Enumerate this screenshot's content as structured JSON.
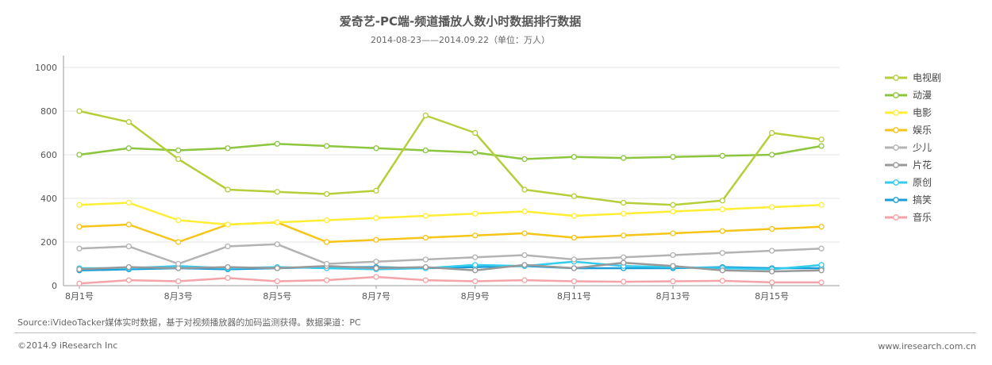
{
  "header": {
    "title": "爱奇艺-PC端-频道播放人数小时数据排行数据",
    "subtitle": "2014-08-23——2014.09.22（单位：万人）"
  },
  "footer": {
    "source": "Source:iVideoTacker媒体实时数据，基于对视频播放器的加码监测获得。数据渠道：PC",
    "copyright": "©2014.9 iResearch Inc",
    "website": "www.iresearch.com.cn"
  },
  "chart_data": {
    "type": "line",
    "title": "爱奇艺-PC端-频道播放人数小时数据排行数据",
    "subtitle": "2014-08-23——2014.09.22（单位：万人）",
    "x": [
      "8月1号",
      "8月2号",
      "8月3号",
      "8月4号",
      "8月5号",
      "8月6号",
      "8月7号",
      "8月8号",
      "8月9号",
      "8月10号",
      "8月11号",
      "8月12号",
      "8月13号",
      "8月14号",
      "8月15号",
      "8月16号"
    ],
    "x_tick_labels": [
      "8月1号",
      "8月3号",
      "8月5号",
      "8月7号",
      "8月9号",
      "8月11号",
      "8月13号",
      "8月15号"
    ],
    "ylim": [
      0,
      1000
    ],
    "y_ticks": [
      0,
      200,
      400,
      600,
      800,
      1000
    ],
    "grid": "horizontal",
    "legend_position": "right",
    "series": [
      {
        "name": "电视剧",
        "color": "#b5cf3b",
        "values": [
          800,
          750,
          580,
          440,
          430,
          420,
          435,
          780,
          700,
          440,
          410,
          380,
          370,
          390,
          700,
          670
        ]
      },
      {
        "name": "动漫",
        "color": "#8cc63f",
        "values": [
          600,
          630,
          620,
          630,
          650,
          640,
          630,
          620,
          610,
          580,
          590,
          585,
          590,
          595,
          600,
          640
        ]
      },
      {
        "name": "电影",
        "color": "#ffee33",
        "values": [
          370,
          380,
          300,
          280,
          290,
          300,
          310,
          320,
          330,
          340,
          320,
          330,
          340,
          350,
          360,
          370
        ]
      },
      {
        "name": "娱乐",
        "color": "#f5c518",
        "values": [
          270,
          280,
          200,
          280,
          290,
          200,
          210,
          220,
          230,
          240,
          220,
          230,
          240,
          250,
          260,
          270
        ]
      },
      {
        "name": "少儿",
        "color": "#b3b3b3",
        "values": [
          170,
          180,
          100,
          180,
          190,
          100,
          110,
          120,
          130,
          140,
          120,
          130,
          140,
          150,
          160,
          170
        ]
      },
      {
        "name": "片花",
        "color": "#999999",
        "values": [
          75,
          85,
          80,
          85,
          80,
          90,
          80,
          85,
          70,
          95,
          80,
          105,
          90,
          70,
          65,
          70
        ]
      },
      {
        "name": "原创",
        "color": "#33ccee",
        "values": [
          80,
          80,
          90,
          80,
          85,
          80,
          75,
          80,
          95,
          90,
          110,
          90,
          85,
          80,
          75,
          95
        ]
      },
      {
        "name": "搞笑",
        "color": "#1a9ed8",
        "values": [
          70,
          75,
          80,
          75,
          80,
          85,
          85,
          80,
          85,
          90,
          80,
          80,
          80,
          85,
          80,
          80
        ]
      },
      {
        "name": "音乐",
        "color": "#f4a3a8",
        "values": [
          10,
          25,
          20,
          35,
          20,
          25,
          40,
          25,
          20,
          25,
          20,
          18,
          20,
          22,
          15,
          15
        ]
      }
    ]
  }
}
